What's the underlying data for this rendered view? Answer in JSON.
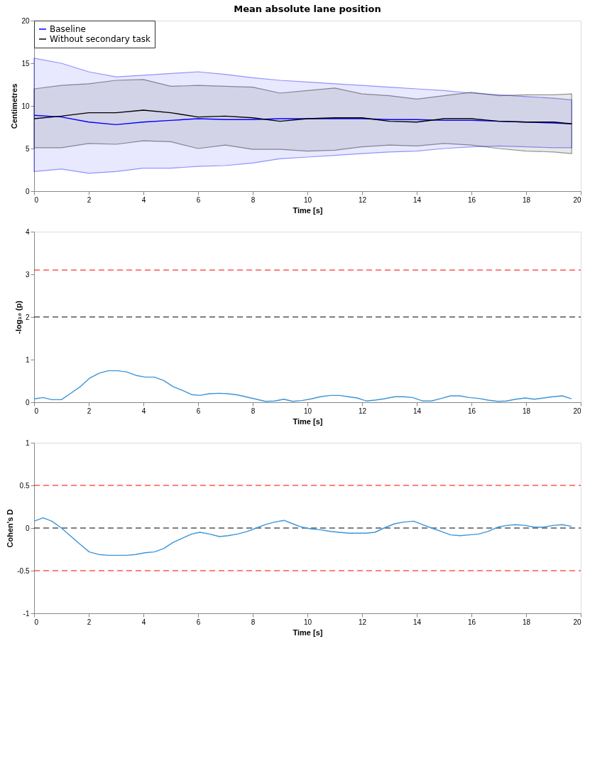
{
  "chart_data": [
    {
      "type": "line",
      "title": "Mean absolute lane position",
      "xlabel": "Time [s]",
      "ylabel": "Centimetres",
      "x": [
        0,
        1,
        2,
        3,
        4,
        5,
        6,
        7,
        8,
        9,
        10,
        11,
        12,
        13,
        14,
        15,
        16,
        17,
        18,
        19,
        19.67
      ],
      "series": [
        {
          "name": "Baseline",
          "color": "#0000ff",
          "values": [
            8.9,
            8.7,
            8.1,
            7.8,
            8.1,
            8.3,
            8.5,
            8.4,
            8.4,
            8.5,
            8.5,
            8.5,
            8.5,
            8.4,
            8.4,
            8.3,
            8.3,
            8.2,
            8.1,
            8.0,
            7.9
          ],
          "upper": [
            15.6,
            15.0,
            14.0,
            13.4,
            13.6,
            13.8,
            14.0,
            13.7,
            13.3,
            13.0,
            12.8,
            12.6,
            12.4,
            12.2,
            12.0,
            11.8,
            11.5,
            11.3,
            11.1,
            10.9,
            10.7
          ],
          "lower": [
            2.3,
            2.6,
            2.1,
            2.3,
            2.7,
            2.7,
            2.9,
            3.0,
            3.3,
            3.8,
            4.0,
            4.2,
            4.4,
            4.6,
            4.7,
            5.0,
            5.2,
            5.3,
            5.2,
            5.1,
            5.1
          ]
        },
        {
          "name": "Without secondary task",
          "color": "#000000",
          "values": [
            8.5,
            8.8,
            9.2,
            9.2,
            9.5,
            9.2,
            8.7,
            8.8,
            8.6,
            8.2,
            8.5,
            8.6,
            8.6,
            8.2,
            8.1,
            8.5,
            8.5,
            8.2,
            8.1,
            8.1,
            7.9
          ],
          "upper": [
            12.0,
            12.4,
            12.6,
            13.0,
            13.1,
            12.3,
            12.4,
            12.3,
            12.2,
            11.5,
            11.8,
            12.1,
            11.4,
            11.2,
            10.8,
            11.2,
            11.6,
            11.2,
            11.3,
            11.3,
            11.4
          ],
          "lower": [
            5.1,
            5.1,
            5.6,
            5.5,
            5.9,
            5.8,
            5.0,
            5.4,
            4.9,
            4.9,
            4.7,
            4.8,
            5.2,
            5.4,
            5.3,
            5.6,
            5.4,
            5.0,
            4.7,
            4.6,
            4.4
          ]
        }
      ],
      "xlim": [
        0,
        20
      ],
      "xticks": [
        0,
        2,
        4,
        6,
        8,
        10,
        12,
        14,
        16,
        18,
        20
      ],
      "ylim": [
        0,
        20
      ],
      "yticks": [
        0,
        5,
        10,
        15,
        20
      ],
      "grid": false,
      "legend": "top left",
      "line_style": "solid"
    },
    {
      "type": "line",
      "xlabel": "Time [s]",
      "ylabel": "-log₁₀ (p)",
      "x": [
        0,
        0.33,
        0.65,
        1,
        1.32,
        1.68,
        2.02,
        2.38,
        2.72,
        3.05,
        3.39,
        3.73,
        4.07,
        4.4,
        4.74,
        5.08,
        5.42,
        5.76,
        6.07,
        6.41,
        6.78,
        7.1,
        7.45,
        7.79,
        8.13,
        8.46,
        8.8,
        9.14,
        9.46,
        9.8,
        10.14,
        10.47,
        10.84,
        11.17,
        11.5,
        11.82,
        12.15,
        12.47,
        12.8,
        13.19,
        13.52,
        13.85,
        14.21,
        14.54,
        14.9,
        15.24,
        15.58,
        15.92,
        16.27,
        16.6,
        16.96,
        17.28,
        17.62,
        17.97,
        18.3,
        18.64,
        18.98,
        19.32,
        19.66
      ],
      "series": [
        {
          "color": "#3d95d8",
          "values": [
            0.08,
            0.11,
            0.06,
            0.06,
            0.2,
            0.36,
            0.56,
            0.68,
            0.74,
            0.74,
            0.71,
            0.63,
            0.59,
            0.59,
            0.51,
            0.37,
            0.28,
            0.18,
            0.16,
            0.2,
            0.21,
            0.2,
            0.17,
            0.12,
            0.07,
            0.02,
            0.03,
            0.07,
            0.02,
            0.04,
            0.08,
            0.13,
            0.16,
            0.16,
            0.13,
            0.1,
            0.03,
            0.05,
            0.08,
            0.13,
            0.13,
            0.11,
            0.03,
            0.03,
            0.09,
            0.15,
            0.15,
            0.11,
            0.09,
            0.05,
            0.02,
            0.03,
            0.07,
            0.1,
            0.07,
            0.1,
            0.13,
            0.15,
            0.08
          ]
        }
      ],
      "ref_lines": [
        {
          "axis": "y",
          "value": 3.1,
          "color": "#ff0000",
          "line_style": "dashed"
        },
        {
          "axis": "y",
          "value": 2,
          "color": "#000000",
          "line_style": "dashed"
        }
      ],
      "xlim": [
        0,
        20
      ],
      "xticks": [
        0,
        2,
        4,
        6,
        8,
        10,
        12,
        14,
        16,
        18,
        20
      ],
      "ylim": [
        0,
        4
      ],
      "yticks": [
        0,
        1,
        2,
        3,
        4
      ],
      "grid": false,
      "legend": false,
      "line_style": "solid"
    },
    {
      "type": "line",
      "xlabel": "Time [s]",
      "ylabel": "Cohen's D",
      "x": [
        0,
        0.33,
        0.65,
        1,
        1.32,
        1.68,
        2.02,
        2.36,
        2.7,
        3.04,
        3.38,
        3.72,
        4.06,
        4.4,
        4.74,
        5.08,
        5.42,
        5.77,
        6.07,
        6.41,
        6.78,
        7.1,
        7.45,
        7.79,
        8.13,
        8.46,
        8.8,
        9.14,
        9.46,
        9.8,
        10.14,
        10.47,
        10.84,
        11.17,
        11.5,
        11.82,
        12.15,
        12.47,
        12.8,
        13.19,
        13.52,
        13.89,
        14.21,
        14.54,
        14.9,
        15.24,
        15.58,
        15.92,
        16.27,
        16.6,
        16.96,
        17.28,
        17.62,
        17.97,
        18.3,
        18.64,
        18.98,
        19.32,
        19.66
      ],
      "series": [
        {
          "color": "#3d95d8",
          "values": [
            0.08,
            0.12,
            0.08,
            0.0,
            -0.09,
            -0.19,
            -0.28,
            -0.31,
            -0.32,
            -0.32,
            -0.32,
            -0.31,
            -0.29,
            -0.28,
            -0.24,
            -0.17,
            -0.12,
            -0.07,
            -0.05,
            -0.07,
            -0.1,
            -0.09,
            -0.07,
            -0.04,
            0.0,
            0.04,
            0.07,
            0.09,
            0.05,
            0.01,
            -0.01,
            -0.02,
            -0.04,
            -0.05,
            -0.06,
            -0.06,
            -0.06,
            -0.05,
            0.0,
            0.05,
            0.07,
            0.08,
            0.04,
            0.0,
            -0.04,
            -0.08,
            -0.09,
            -0.08,
            -0.07,
            -0.04,
            0.01,
            0.03,
            0.04,
            0.03,
            0.01,
            0.01,
            0.03,
            0.04,
            0.02
          ]
        }
      ],
      "ref_lines": [
        {
          "axis": "y",
          "value": 0.5,
          "color": "#ff0000",
          "line_style": "dashed"
        },
        {
          "axis": "y",
          "value": 0,
          "color": "#000000",
          "line_style": "dashed"
        },
        {
          "axis": "y",
          "value": -0.5,
          "color": "#ff0000",
          "line_style": "dashed"
        }
      ],
      "xlim": [
        0,
        20
      ],
      "xticks": [
        0,
        2,
        4,
        6,
        8,
        10,
        12,
        14,
        16,
        18,
        20
      ],
      "ylim": [
        -1,
        1
      ],
      "yticks": [
        -1,
        -0.5,
        0,
        0.5,
        1
      ],
      "grid": false,
      "legend": false,
      "line_style": "solid"
    }
  ]
}
